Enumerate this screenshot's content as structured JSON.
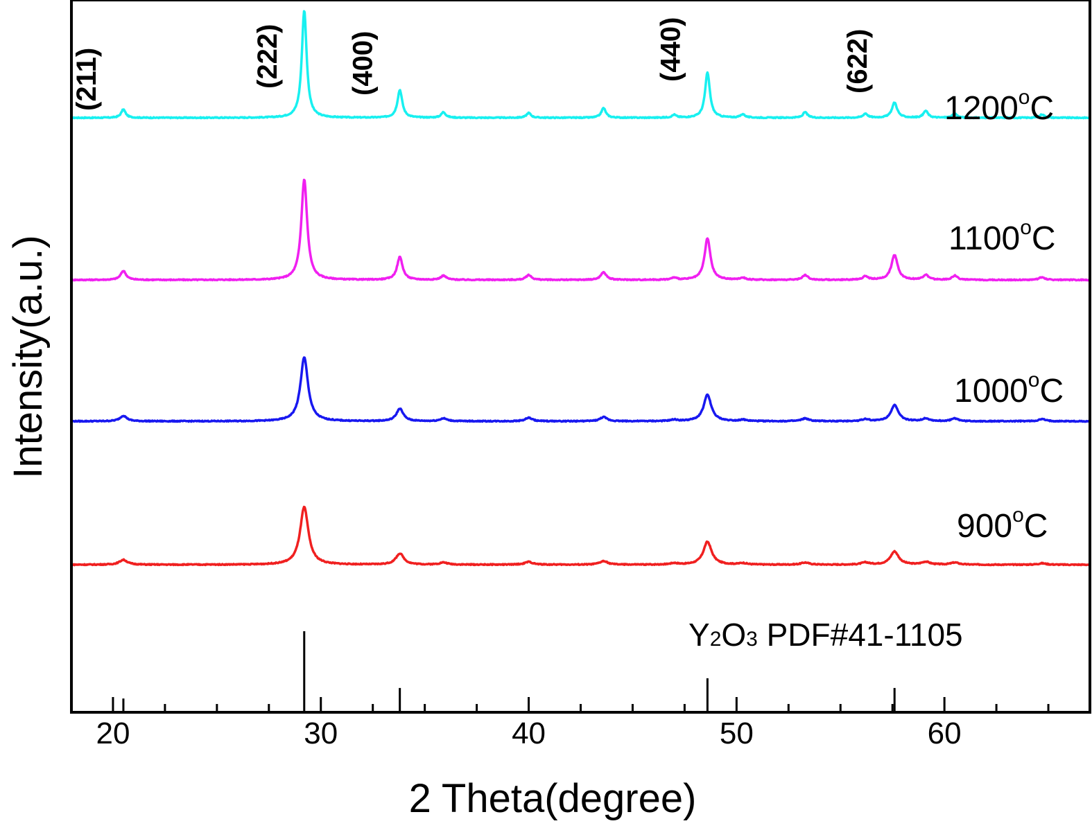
{
  "chart_data": {
    "type": "line",
    "title": "",
    "xlabel": "2 Theta(degree)",
    "ylabel": "Intensity(a.u.)",
    "xlim": [
      18,
      67
    ],
    "x_ticks": [
      20,
      30,
      40,
      50,
      60
    ],
    "x_minor_step": 2.5,
    "y_ticks_shown": false,
    "grid": false,
    "legend": "none",
    "peaks_2theta": [
      20.5,
      29.2,
      33.8,
      35.9,
      40.0,
      43.6,
      47.0,
      48.6,
      50.3,
      53.3,
      56.2,
      57.6,
      59.1,
      60.5,
      64.7
    ],
    "series": [
      {
        "name": "1200°C",
        "name_parts": {
          "value": "1200",
          "degree": "o",
          "unit": "C"
        },
        "color": "#18F0F0",
        "baseline": 0,
        "peak_heights": [
          12,
          155,
          40,
          8,
          7,
          14,
          4,
          65,
          5,
          8,
          6,
          22,
          10,
          6,
          5
        ],
        "peak_widths": [
          0.13,
          0.14,
          0.14,
          0.13,
          0.13,
          0.13,
          0.13,
          0.14,
          0.13,
          0.13,
          0.13,
          0.15,
          0.13,
          0.13,
          0.13
        ]
      },
      {
        "name": "1100°C",
        "name_parts": {
          "value": "1100",
          "degree": "o",
          "unit": "C"
        },
        "color": "#F020F0",
        "baseline": 0,
        "peak_heights": [
          13,
          145,
          33,
          6,
          7,
          11,
          3,
          60,
          3,
          7,
          5,
          36,
          7,
          6,
          4
        ],
        "peak_widths": [
          0.16,
          0.17,
          0.16,
          0.16,
          0.16,
          0.16,
          0.16,
          0.17,
          0.16,
          0.16,
          0.16,
          0.18,
          0.16,
          0.16,
          0.16
        ]
      },
      {
        "name": "1000°C",
        "name_parts": {
          "value": "1000",
          "degree": "o",
          "unit": "C"
        },
        "color": "#1818F0",
        "baseline": 0,
        "peak_heights": [
          8,
          92,
          18,
          4,
          5,
          6,
          2,
          38,
          2,
          4,
          3,
          23,
          4,
          4,
          3
        ],
        "peak_widths": [
          0.2,
          0.22,
          0.2,
          0.2,
          0.2,
          0.2,
          0.2,
          0.22,
          0.2,
          0.2,
          0.2,
          0.22,
          0.2,
          0.2,
          0.2
        ]
      },
      {
        "name": "900°C",
        "name_parts": {
          "value": "900",
          "degree": "o",
          "unit": "C"
        },
        "color": "#F02020",
        "baseline": 0,
        "peak_heights": [
          7,
          83,
          16,
          3,
          4,
          5,
          2,
          33,
          2,
          3,
          3,
          19,
          4,
          3,
          2
        ],
        "peak_widths": [
          0.23,
          0.24,
          0.23,
          0.23,
          0.23,
          0.23,
          0.23,
          0.24,
          0.23,
          0.23,
          0.23,
          0.24,
          0.23,
          0.23,
          0.23
        ]
      }
    ],
    "hkl_labels": [
      {
        "text": "(211)",
        "x": 20.5
      },
      {
        "text": "(222)",
        "x": 29.2
      },
      {
        "text": "(400)",
        "x": 33.8
      },
      {
        "text": "(440)",
        "x": 48.6
      },
      {
        "text": "(622)",
        "x": 57.6
      }
    ],
    "reference": {
      "label_main": "Y",
      "label_sub1": "2",
      "label_mid": "O",
      "label_sub2": "3",
      "label_rest": " PDF#41-1105",
      "color": "#000000",
      "lines": [
        {
          "x": 20.5,
          "intensity": 17
        },
        {
          "x": 29.2,
          "intensity": 100
        },
        {
          "x": 33.8,
          "intensity": 30
        },
        {
          "x": 48.6,
          "intensity": 42
        },
        {
          "x": 57.6,
          "intensity": 30
        }
      ]
    }
  }
}
